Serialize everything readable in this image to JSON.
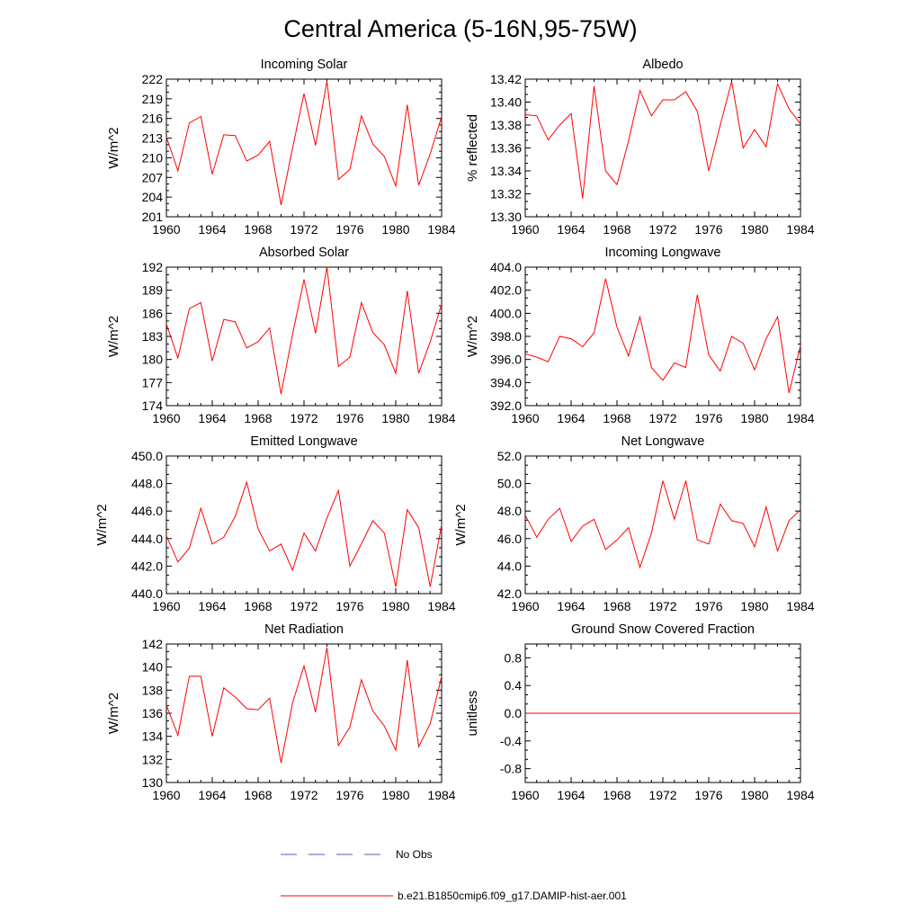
{
  "figure": {
    "title": "Central America (5-16N,95-75W)"
  },
  "colors": {
    "series": "#ff0000",
    "obs": "#5a5ab4",
    "axis": "#000000"
  },
  "legend": [
    {
      "label": "No Obs",
      "style": "dashed",
      "color": "#5a5ab4"
    },
    {
      "label": "b.e21.B1850cmip6.f09_g17.DAMIP-hist-aer.001",
      "style": "solid",
      "color": "#ff0000"
    }
  ],
  "chart_data": [
    {
      "type": "line",
      "title": "Incoming Solar",
      "ylabel": "W/m^2",
      "xlim": [
        1960,
        1984
      ],
      "xticks": [
        1960,
        1964,
        1968,
        1972,
        1976,
        1980,
        1984
      ],
      "ylim": [
        201,
        222
      ],
      "yticks": [
        201,
        204,
        207,
        210,
        213,
        216,
        219,
        222
      ],
      "ytick_labels": [
        "201",
        "204",
        "207",
        "210",
        "213",
        "216",
        "219",
        "222"
      ],
      "x": [
        1960,
        1961,
        1962,
        1963,
        1964,
        1965,
        1966,
        1967,
        1968,
        1969,
        1970,
        1971,
        1972,
        1973,
        1974,
        1975,
        1976,
        1977,
        1978,
        1979,
        1980,
        1981,
        1982,
        1983,
        1984
      ],
      "values": [
        213.2,
        208.0,
        215.3,
        216.3,
        207.5,
        213.5,
        213.4,
        209.5,
        210.4,
        212.5,
        202.8,
        211.5,
        219.8,
        211.9,
        221.7,
        206.7,
        208.2,
        216.4,
        212.1,
        210.2,
        205.7,
        218.1,
        205.8,
        210.6,
        216.3
      ]
    },
    {
      "type": "line",
      "title": "Albedo",
      "ylabel": "% reflected",
      "xlim": [
        1960,
        1984
      ],
      "xticks": [
        1960,
        1964,
        1968,
        1972,
        1976,
        1980,
        1984
      ],
      "ylim": [
        13.3,
        13.42
      ],
      "yticks": [
        13.3,
        13.32,
        13.34,
        13.36,
        13.38,
        13.4,
        13.42
      ],
      "ytick_labels": [
        "13.30",
        "13.32",
        "13.34",
        "13.36",
        "13.38",
        "13.40",
        "13.42"
      ],
      "x": [
        1960,
        1961,
        1962,
        1963,
        1964,
        1965,
        1966,
        1967,
        1968,
        1969,
        1970,
        1971,
        1972,
        1973,
        1974,
        1975,
        1976,
        1977,
        1978,
        1979,
        1980,
        1981,
        1982,
        1983,
        1984
      ],
      "values": [
        13.389,
        13.388,
        13.367,
        13.38,
        13.39,
        13.316,
        13.414,
        13.34,
        13.328,
        13.366,
        13.41,
        13.388,
        13.402,
        13.402,
        13.409,
        13.392,
        13.34,
        13.38,
        13.418,
        13.36,
        13.376,
        13.361,
        13.416,
        13.394,
        13.381
      ]
    },
    {
      "type": "line",
      "title": "Absorbed Solar",
      "ylabel": "W/m^2",
      "xlim": [
        1960,
        1984
      ],
      "xticks": [
        1960,
        1964,
        1968,
        1972,
        1976,
        1980,
        1984
      ],
      "ylim": [
        174,
        192
      ],
      "yticks": [
        174,
        177,
        180,
        183,
        186,
        189,
        192
      ],
      "ytick_labels": [
        "174",
        "177",
        "180",
        "183",
        "186",
        "189",
        "192"
      ],
      "x": [
        1960,
        1961,
        1962,
        1963,
        1964,
        1965,
        1966,
        1967,
        1968,
        1969,
        1970,
        1971,
        1972,
        1973,
        1974,
        1975,
        1976,
        1977,
        1978,
        1979,
        1980,
        1981,
        1982,
        1983,
        1984
      ],
      "values": [
        184.6,
        180.2,
        186.6,
        187.4,
        179.8,
        185.2,
        184.9,
        181.5,
        182.3,
        184.1,
        175.5,
        183.3,
        190.4,
        183.4,
        192.0,
        179.1,
        180.3,
        187.4,
        183.5,
        181.9,
        178.2,
        188.9,
        178.2,
        182.3,
        187.2
      ]
    },
    {
      "type": "line",
      "title": "Incoming Longwave",
      "ylabel": "W/m^2",
      "xlim": [
        1960,
        1984
      ],
      "xticks": [
        1960,
        1964,
        1968,
        1972,
        1976,
        1980,
        1984
      ],
      "ylim": [
        392.0,
        404.0
      ],
      "yticks": [
        392.0,
        394.0,
        396.0,
        398.0,
        400.0,
        402.0,
        404.0
      ],
      "ytick_labels": [
        "392.0",
        "394.0",
        "396.0",
        "398.0",
        "400.0",
        "402.0",
        "404.0"
      ],
      "x": [
        1960,
        1961,
        1962,
        1963,
        1964,
        1965,
        1966,
        1967,
        1968,
        1969,
        1970,
        1971,
        1972,
        1973,
        1974,
        1975,
        1976,
        1977,
        1978,
        1979,
        1980,
        1981,
        1982,
        1983,
        1984
      ],
      "values": [
        396.5,
        396.2,
        395.8,
        398.0,
        397.8,
        397.1,
        398.3,
        403.0,
        398.8,
        396.3,
        399.7,
        395.3,
        394.2,
        395.7,
        395.3,
        401.6,
        396.4,
        395.0,
        398.0,
        397.4,
        395.1,
        397.8,
        399.7,
        393.1,
        397.2
      ]
    },
    {
      "type": "line",
      "title": "Emitted Longwave",
      "ylabel": "W/m^2",
      "xlim": [
        1960,
        1984
      ],
      "xticks": [
        1960,
        1964,
        1968,
        1972,
        1976,
        1980,
        1984
      ],
      "ylim": [
        440.0,
        450.0
      ],
      "yticks": [
        440.0,
        442.0,
        444.0,
        446.0,
        448.0,
        450.0
      ],
      "ytick_labels": [
        "440.0",
        "442.0",
        "444.0",
        "446.0",
        "448.0",
        "450.0"
      ],
      "x": [
        1960,
        1961,
        1962,
        1963,
        1964,
        1965,
        1966,
        1967,
        1968,
        1969,
        1970,
        1971,
        1972,
        1973,
        1974,
        1975,
        1976,
        1977,
        1978,
        1979,
        1980,
        1981,
        1982,
        1983,
        1984
      ],
      "values": [
        444.2,
        442.3,
        443.3,
        446.2,
        443.6,
        444.1,
        445.6,
        448.1,
        444.7,
        443.1,
        443.6,
        441.7,
        444.4,
        443.1,
        445.5,
        447.5,
        442.0,
        443.6,
        445.3,
        444.4,
        440.5,
        446.1,
        444.8,
        440.5,
        445.0
      ]
    },
    {
      "type": "line",
      "title": "Net Longwave",
      "ylabel": "W/m^2",
      "xlim": [
        1960,
        1984
      ],
      "xticks": [
        1960,
        1964,
        1968,
        1972,
        1976,
        1980,
        1984
      ],
      "ylim": [
        42.0,
        52.0
      ],
      "yticks": [
        42.0,
        44.0,
        46.0,
        48.0,
        50.0,
        52.0
      ],
      "ytick_labels": [
        "42.0",
        "44.0",
        "46.0",
        "48.0",
        "50.0",
        "52.0"
      ],
      "x": [
        1960,
        1961,
        1962,
        1963,
        1964,
        1965,
        1966,
        1967,
        1968,
        1969,
        1970,
        1971,
        1972,
        1973,
        1974,
        1975,
        1976,
        1977,
        1978,
        1979,
        1980,
        1981,
        1982,
        1983,
        1984
      ],
      "values": [
        47.7,
        46.1,
        47.4,
        48.2,
        45.8,
        46.9,
        47.4,
        45.2,
        45.9,
        46.8,
        43.9,
        46.4,
        50.2,
        47.4,
        50.2,
        45.9,
        45.6,
        48.5,
        47.3,
        47.1,
        45.4,
        48.3,
        45.1,
        47.3,
        48.1
      ]
    },
    {
      "type": "line",
      "title": "Net Radiation",
      "ylabel": "W/m^2",
      "xlim": [
        1960,
        1984
      ],
      "xticks": [
        1960,
        1964,
        1968,
        1972,
        1976,
        1980,
        1984
      ],
      "ylim": [
        130,
        142
      ],
      "yticks": [
        130,
        132,
        134,
        136,
        138,
        140,
        142
      ],
      "ytick_labels": [
        "130",
        "132",
        "134",
        "136",
        "138",
        "140",
        "142"
      ],
      "x": [
        1960,
        1961,
        1962,
        1963,
        1964,
        1965,
        1966,
        1967,
        1968,
        1969,
        1970,
        1971,
        1972,
        1973,
        1974,
        1975,
        1976,
        1977,
        1978,
        1979,
        1980,
        1981,
        1982,
        1983,
        1984
      ],
      "values": [
        136.7,
        134.1,
        139.2,
        139.2,
        134.0,
        138.2,
        137.4,
        136.4,
        136.3,
        137.3,
        131.7,
        136.9,
        140.1,
        136.1,
        141.7,
        133.2,
        134.8,
        138.9,
        136.2,
        134.9,
        132.8,
        140.6,
        133.1,
        135.1,
        139.2
      ]
    },
    {
      "type": "line",
      "title": "Ground Snow Covered Fraction",
      "ylabel": "unitless",
      "xlim": [
        1960,
        1984
      ],
      "xticks": [
        1960,
        1964,
        1968,
        1972,
        1976,
        1980,
        1984
      ],
      "ylim": [
        -1.0,
        1.0
      ],
      "yticks": [
        -0.8,
        -0.4,
        0.0,
        0.4,
        0.8
      ],
      "ytick_labels": [
        "-0.8",
        "-0.4",
        "0.0",
        "0.4",
        "0.8"
      ],
      "x": [
        1960,
        1961,
        1962,
        1963,
        1964,
        1965,
        1966,
        1967,
        1968,
        1969,
        1970,
        1971,
        1972,
        1973,
        1974,
        1975,
        1976,
        1977,
        1978,
        1979,
        1980,
        1981,
        1982,
        1983,
        1984
      ],
      "values": [
        0,
        0,
        0,
        0,
        0,
        0,
        0,
        0,
        0,
        0,
        0,
        0,
        0,
        0,
        0,
        0,
        0,
        0,
        0,
        0,
        0,
        0,
        0,
        0,
        0
      ]
    }
  ]
}
